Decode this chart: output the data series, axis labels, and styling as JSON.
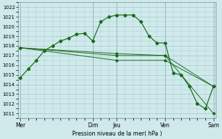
{
  "background_color": "#d0eaec",
  "grid_color": "#a0c8cc",
  "line_color": "#1a6b1a",
  "marker_color": "#1a6b1a",
  "xlabel": "Pression niveau de la mer( hPa )",
  "ylim": [
    1010.5,
    1022.5
  ],
  "yticks": [
    1011,
    1012,
    1013,
    1014,
    1015,
    1016,
    1017,
    1018,
    1019,
    1020,
    1021,
    1022
  ],
  "xtick_labels": [
    "Mer",
    "Dim",
    "Jeu",
    "Ven",
    "Sam"
  ],
  "xtick_positions": [
    0,
    9,
    12,
    18,
    24
  ],
  "vline_positions": [
    0,
    9,
    12,
    18,
    24
  ],
  "xlim": [
    -0.3,
    24.3
  ],
  "series": [
    {
      "x": [
        0,
        1,
        2,
        3,
        4,
        5,
        6,
        7,
        8,
        9,
        10,
        11,
        12,
        13,
        14,
        15,
        16,
        17,
        18,
        19,
        20,
        21,
        22,
        23,
        24
      ],
      "y": [
        1014.7,
        1015.6,
        1016.5,
        1017.5,
        1018.0,
        1018.5,
        1018.8,
        1019.2,
        1019.3,
        1018.5,
        1020.5,
        1021.0,
        1021.2,
        1021.2,
        1021.2,
        1020.5,
        1019.0,
        1018.3,
        1018.3,
        1015.2,
        1015.0,
        1013.8,
        1012.0,
        1011.5,
        1013.8
      ]
    },
    {
      "x": [
        0,
        12,
        18,
        24
      ],
      "y": [
        1017.8,
        1017.2,
        1017.0,
        1011.0
      ]
    },
    {
      "x": [
        0,
        12,
        18,
        24
      ],
      "y": [
        1017.8,
        1017.0,
        1017.0,
        1013.8
      ]
    },
    {
      "x": [
        0,
        12,
        18,
        24
      ],
      "y": [
        1017.8,
        1016.5,
        1016.5,
        1013.8
      ]
    }
  ]
}
